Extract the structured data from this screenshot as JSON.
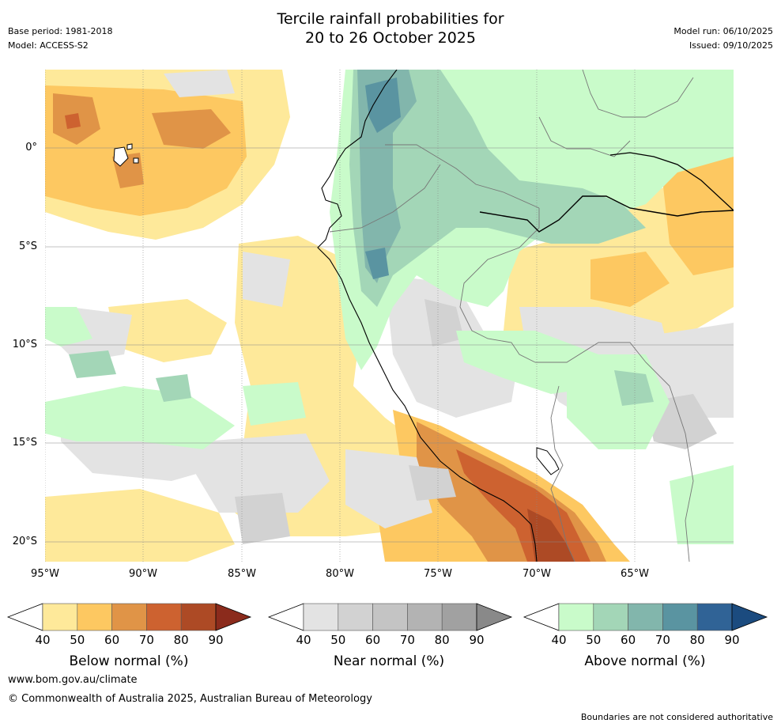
{
  "header": {
    "title_line1": "Tercile rainfall probabilities for",
    "title_line2": "20 to 26 October 2025",
    "base_period": "Base period: 1981-2018",
    "model": "Model: ACCESS-S2",
    "model_run": "Model run: 06/10/2025",
    "issued": "Issued: 09/10/2025"
  },
  "map": {
    "lat_labels": [
      "0°",
      "5°S",
      "10°S",
      "15°S",
      "20°S"
    ],
    "lon_labels": [
      "95°W",
      "90°W",
      "85°W",
      "80°W",
      "75°W",
      "70°W",
      "65°W"
    ]
  },
  "colorbars": [
    {
      "label": "Below normal (%)",
      "ticks": [
        "40",
        "50",
        "60",
        "70",
        "80",
        "90"
      ],
      "colors": [
        "#fee99a",
        "#fdc861",
        "#e09447",
        "#cd6230",
        "#ad4a25",
        "#8b2b1c"
      ]
    },
    {
      "label": "Near normal (%)",
      "ticks": [
        "40",
        "50",
        "60",
        "70",
        "80",
        "90"
      ],
      "colors": [
        "#e3e3e3",
        "#d2d2d2",
        "#c4c4c4",
        "#b3b3b3",
        "#a1a1a1",
        "#898989"
      ]
    },
    {
      "label": "Above normal (%)",
      "ticks": [
        "40",
        "50",
        "60",
        "70",
        "80",
        "90"
      ],
      "colors": [
        "#c9fbca",
        "#a3d6b7",
        "#82b6ac",
        "#5a94a1",
        "#306396",
        "#1b4b7f"
      ]
    }
  ],
  "footer": {
    "website": "www.bom.gov.au/climate",
    "copyright": "© Commonwealth of Australia 2025, Australian Bureau of Meteorology",
    "disclaimer": "Boundaries are not considered authoritative"
  }
}
